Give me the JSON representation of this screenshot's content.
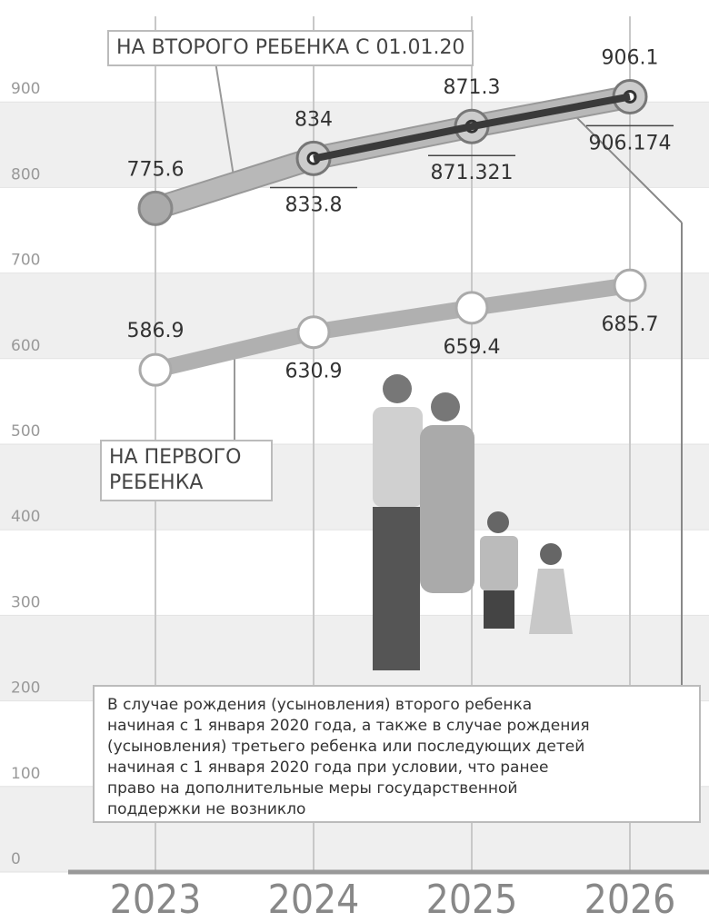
{
  "chart_data": {
    "type": "line",
    "categories": [
      "2023",
      "2024",
      "2025",
      "2026"
    ],
    "series": [
      {
        "name": "НА ВТОРОГО РЕБЕНКА С 01.01.20",
        "color": "#b8b8b8",
        "values": [
          775.6,
          834,
          871.3,
          906.1
        ]
      },
      {
        "color": "#3a3a3a",
        "values": [
          null,
          833.8,
          871.321,
          906.174
        ]
      },
      {
        "name": "НА ПЕРВОГО РЕБЕНКА",
        "color": "#b0b0b0",
        "values": [
          586.9,
          630.9,
          659.4,
          685.7
        ]
      }
    ],
    "ylim": [
      0,
      1000
    ],
    "yticks": [
      0,
      100,
      200,
      300,
      400,
      500,
      600,
      700,
      800,
      900
    ],
    "grid": true,
    "note": [
      "В случае рождения (усыновления) второго ребенка",
      "начиная с 1 января 2020 года, а также в случае рождения",
      "(усыновления) третьего ребенка или последующих детей",
      "начиная с 1 января 2020 года при условии, что ранее",
      "право на дополнительные меры государственной",
      "поддержки не возникло"
    ]
  }
}
